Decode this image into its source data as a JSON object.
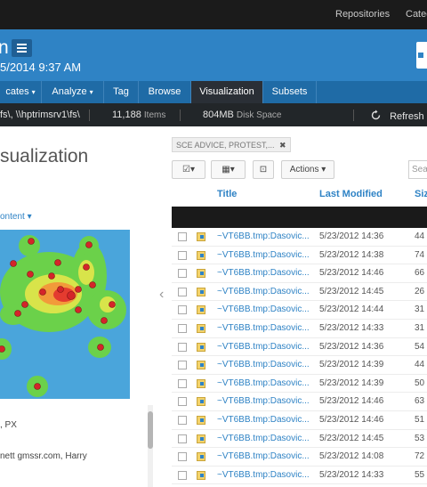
{
  "topbar": {
    "links": [
      "Repositories",
      "Categ"
    ]
  },
  "header": {
    "title_fragment": "n",
    "date": "5/2014 9:37 AM"
  },
  "nav": {
    "tabs": [
      {
        "label": "cates",
        "caret": "▾"
      },
      {
        "label": "Analyze",
        "caret": "▾"
      },
      {
        "label": "Tag",
        "caret": ""
      },
      {
        "label": "Browse",
        "caret": ""
      },
      {
        "label": "Visualization",
        "caret": ""
      },
      {
        "label": "Subsets",
        "caret": ""
      }
    ],
    "active_tab": "Visualization"
  },
  "status": {
    "path": "fs\\, \\\\hptrimsrv1\\fs\\",
    "items_count": "11,188",
    "items_label": "Items",
    "disk_value": "804MB",
    "disk_label": "Disk Space",
    "refresh_label": "Refresh"
  },
  "left": {
    "title": "sualization",
    "content_label": "ontent",
    "info1": ", PX",
    "info2": "nett gmssr.com, Harry"
  },
  "right": {
    "filter_chip": "SCE ADVICE, PROTEST,...",
    "actions_label": "Actions",
    "search_placeholder": "Sea",
    "columns": {
      "title": "Title",
      "modified": "Last Modified",
      "size": "Siz"
    },
    "rows": [
      {
        "title": "~VT6BB.tmp:Dasovic...",
        "modified": "5/23/2012 14:36",
        "size": "44"
      },
      {
        "title": "~VT6BB.tmp:Dasovic...",
        "modified": "5/23/2012 14:38",
        "size": "74"
      },
      {
        "title": "~VT6BB.tmp:Dasovic...",
        "modified": "5/23/2012 14:46",
        "size": "66"
      },
      {
        "title": "~VT6BB.tmp:Dasovic...",
        "modified": "5/23/2012 14:45",
        "size": "26"
      },
      {
        "title": "~VT6BB.tmp:Dasovic...",
        "modified": "5/23/2012 14:44",
        "size": "31"
      },
      {
        "title": "~VT6BB.tmp:Dasovic...",
        "modified": "5/23/2012 14:33",
        "size": "31"
      },
      {
        "title": "~VT6BB.tmp:Dasovic...",
        "modified": "5/23/2012 14:36",
        "size": "54"
      },
      {
        "title": "~VT6BB.tmp:Dasovic...",
        "modified": "5/23/2012 14:39",
        "size": "44"
      },
      {
        "title": "~VT6BB.tmp:Dasovic...",
        "modified": "5/23/2012 14:39",
        "size": "50"
      },
      {
        "title": "~VT6BB.tmp:Dasovic...",
        "modified": "5/23/2012 14:46",
        "size": "63"
      },
      {
        "title": "~VT6BB.tmp:Dasovic...",
        "modified": "5/23/2012 14:46",
        "size": "51"
      },
      {
        "title": "~VT6BB.tmp:Dasovic...",
        "modified": "5/23/2012 14:45",
        "size": "53"
      },
      {
        "title": "~VT6BB.tmp:Dasovic...",
        "modified": "5/23/2012 14:08",
        "size": "72"
      },
      {
        "title": "~VT6BB.tmp:Dasovic...",
        "modified": "5/23/2012 14:33",
        "size": "55"
      }
    ]
  },
  "colors": {
    "accent": "#2f83c5",
    "nav": "#1f6ba6",
    "active_tab": "#2a2f36",
    "heat_bg": "#4aa5db"
  }
}
